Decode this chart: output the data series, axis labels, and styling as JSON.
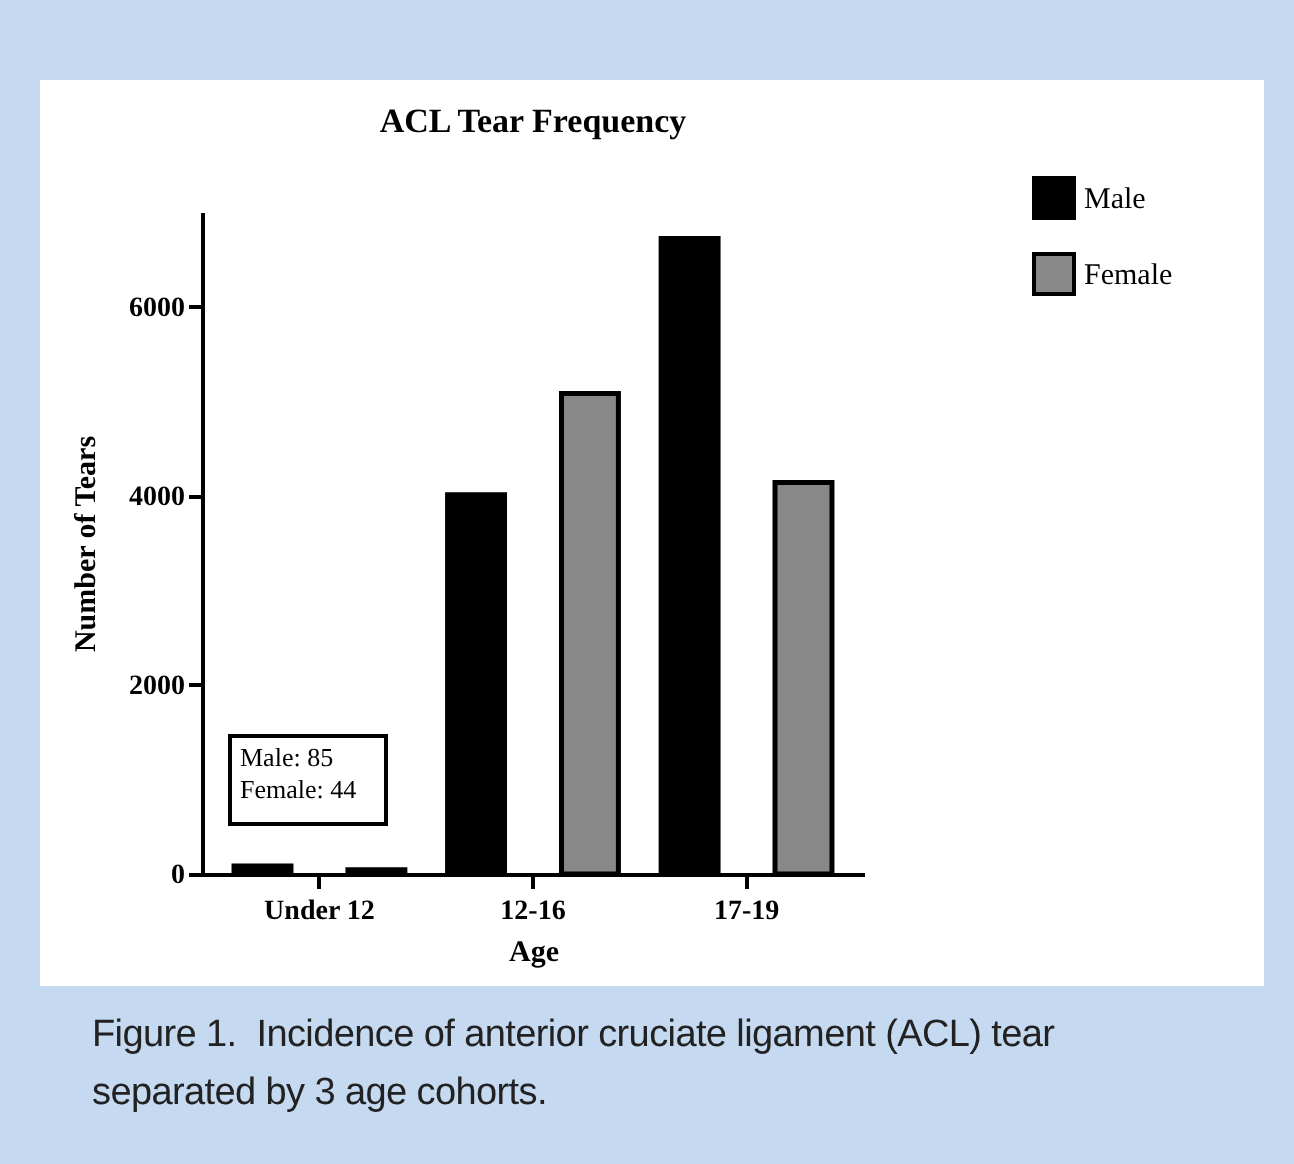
{
  "chart_data": {
    "type": "bar",
    "title": "ACL Tear Frequency",
    "xlabel": "Age",
    "ylabel": "Number of Tears",
    "categories": [
      "Under 12",
      "12-16",
      "17-19"
    ],
    "series": [
      {
        "name": "Male",
        "color": "#000000",
        "values": [
          85,
          4010,
          6720
        ]
      },
      {
        "name": "Female",
        "color": "#888888",
        "values": [
          44,
          5080,
          4140
        ]
      }
    ],
    "ylim": [
      0,
      7000
    ],
    "yticks": [
      0,
      2000,
      4000,
      6000
    ],
    "grid": false,
    "legend": "top right",
    "annotations": [
      "Male: 85\nFemale: 44",
      "Figure 1.  Incidence of anterior cruciate ligament (ACL) tear separated by 3 age cohorts."
    ]
  }
}
